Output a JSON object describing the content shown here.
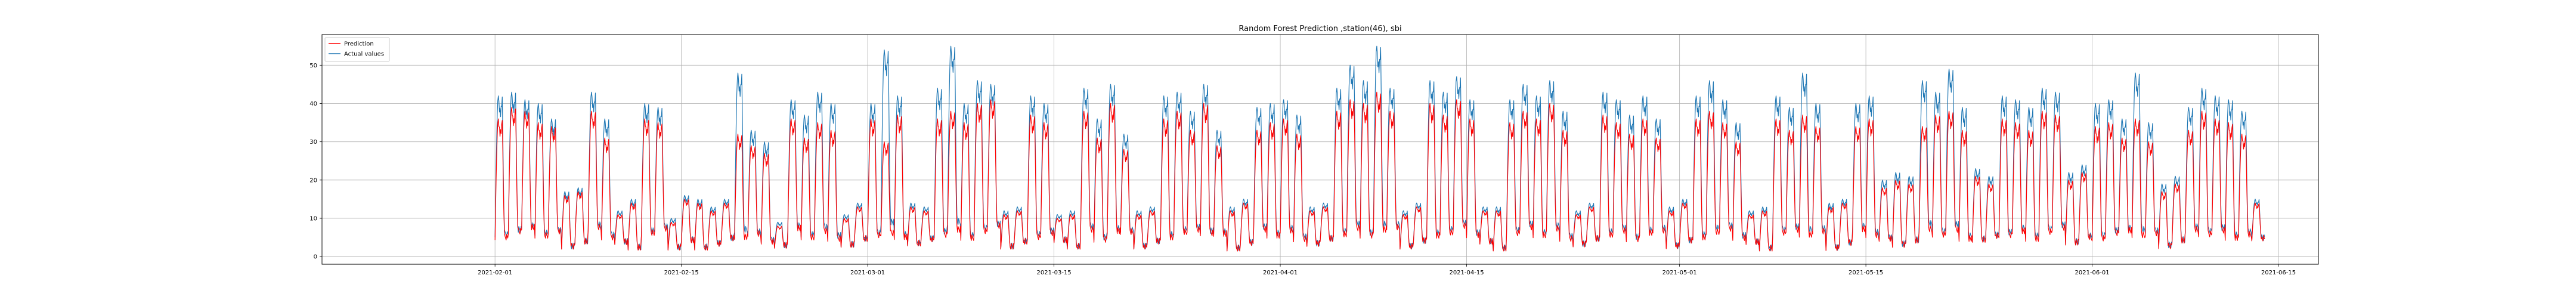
{
  "chart_data": {
    "type": "line",
    "title": "Random Forest Prediction ,station(46), sbi",
    "xlabel": "",
    "ylabel": "",
    "xlim": [
      "2021-01-19",
      "2021-06-18"
    ],
    "ylim": [
      -2,
      58
    ],
    "grid": true,
    "legend_position": "top-left",
    "x_ticks": [
      "2021-02-01",
      "2021-02-15",
      "2021-03-01",
      "2021-03-15",
      "2021-04-01",
      "2021-04-15",
      "2021-05-01",
      "2021-05-15",
      "2021-06-01",
      "2021-06-15"
    ],
    "y_ticks": [
      0,
      10,
      20,
      30,
      40,
      50
    ],
    "series": [
      {
        "name": "Prediction",
        "color": "#ff0000",
        "x": [
          "2021-02-01",
          "2021-02-02",
          "2021-02-03",
          "2021-02-04",
          "2021-02-05",
          "2021-02-06",
          "2021-02-07",
          "2021-02-08",
          "2021-02-09",
          "2021-02-10",
          "2021-02-11",
          "2021-02-12",
          "2021-02-13",
          "2021-02-14",
          "2021-02-15",
          "2021-02-16",
          "2021-02-17",
          "2021-02-18",
          "2021-02-19",
          "2021-02-20",
          "2021-02-21",
          "2021-02-22",
          "2021-02-23",
          "2021-02-24",
          "2021-02-25",
          "2021-02-26",
          "2021-02-27",
          "2021-02-28",
          "2021-03-01",
          "2021-03-02",
          "2021-03-03",
          "2021-03-04",
          "2021-03-05",
          "2021-03-06",
          "2021-03-07",
          "2021-03-08",
          "2021-03-09",
          "2021-03-10",
          "2021-03-11",
          "2021-03-12",
          "2021-03-13",
          "2021-03-14",
          "2021-03-15",
          "2021-03-16",
          "2021-03-17",
          "2021-03-18",
          "2021-03-19",
          "2021-03-20",
          "2021-03-21",
          "2021-03-22",
          "2021-03-23",
          "2021-03-24",
          "2021-03-25",
          "2021-03-26",
          "2021-03-27",
          "2021-03-28",
          "2021-03-29",
          "2021-03-30",
          "2021-03-31",
          "2021-04-01",
          "2021-04-02",
          "2021-04-03",
          "2021-04-04",
          "2021-04-05",
          "2021-04-06",
          "2021-04-07",
          "2021-04-08",
          "2021-04-09",
          "2021-04-10",
          "2021-04-11",
          "2021-04-12",
          "2021-04-13",
          "2021-04-14",
          "2021-04-15",
          "2021-04-16",
          "2021-04-17",
          "2021-04-18",
          "2021-04-19",
          "2021-04-20",
          "2021-04-21",
          "2021-04-22",
          "2021-04-23",
          "2021-04-24",
          "2021-04-25",
          "2021-04-26",
          "2021-04-27",
          "2021-04-28",
          "2021-04-29",
          "2021-04-30",
          "2021-05-01",
          "2021-05-02",
          "2021-05-03",
          "2021-05-04",
          "2021-05-05",
          "2021-05-06",
          "2021-05-07",
          "2021-05-08",
          "2021-05-09",
          "2021-05-10",
          "2021-05-11",
          "2021-05-12",
          "2021-05-13",
          "2021-05-14",
          "2021-05-15",
          "2021-05-16",
          "2021-05-17",
          "2021-05-18",
          "2021-05-19",
          "2021-05-20",
          "2021-05-21",
          "2021-05-22",
          "2021-05-23",
          "2021-05-24",
          "2021-05-25",
          "2021-05-26",
          "2021-05-27",
          "2021-05-28",
          "2021-05-29",
          "2021-05-30",
          "2021-05-31",
          "2021-06-01",
          "2021-06-02",
          "2021-06-03",
          "2021-06-04",
          "2021-06-05",
          "2021-06-06",
          "2021-06-07",
          "2021-06-08",
          "2021-06-09",
          "2021-06-10",
          "2021-06-11",
          "2021-06-12",
          "2021-06-13"
        ],
        "values": [
          36,
          39,
          38,
          35,
          34,
          16,
          17,
          38,
          31,
          11,
          14,
          36,
          35,
          9,
          15,
          14,
          12,
          14,
          32,
          29,
          27,
          8,
          36,
          31,
          35,
          33,
          10,
          13,
          36,
          30,
          37,
          13,
          12,
          36,
          38,
          35,
          40,
          41,
          11,
          12,
          37,
          35,
          10,
          11,
          38,
          31,
          40,
          28,
          11,
          12,
          36,
          38,
          33,
          40,
          29,
          12,
          14,
          33,
          35,
          36,
          32,
          12,
          13,
          38,
          41,
          40,
          43,
          38,
          11,
          13,
          40,
          37,
          41,
          36,
          12,
          12,
          35,
          38,
          36,
          40,
          33,
          11,
          13,
          37,
          35,
          32,
          36,
          31,
          12,
          14,
          36,
          38,
          35,
          30,
          11,
          12,
          36,
          33,
          37,
          34,
          13,
          14,
          34,
          36,
          18,
          20,
          19,
          34,
          37,
          38,
          33,
          21,
          19,
          36,
          35,
          33,
          38,
          37,
          20,
          22,
          34,
          35,
          31,
          36,
          30,
          17,
          19,
          33,
          38,
          36,
          35,
          32,
          14
        ]
      },
      {
        "name": "Actual values",
        "color": "#1f77b4",
        "x": [
          "2021-02-01",
          "2021-02-02",
          "2021-02-03",
          "2021-02-04",
          "2021-02-05",
          "2021-02-06",
          "2021-02-07",
          "2021-02-08",
          "2021-02-09",
          "2021-02-10",
          "2021-02-11",
          "2021-02-12",
          "2021-02-13",
          "2021-02-14",
          "2021-02-15",
          "2021-02-16",
          "2021-02-17",
          "2021-02-18",
          "2021-02-19",
          "2021-02-20",
          "2021-02-21",
          "2021-02-22",
          "2021-02-23",
          "2021-02-24",
          "2021-02-25",
          "2021-02-26",
          "2021-02-27",
          "2021-02-28",
          "2021-03-01",
          "2021-03-02",
          "2021-03-03",
          "2021-03-04",
          "2021-03-05",
          "2021-03-06",
          "2021-03-07",
          "2021-03-08",
          "2021-03-09",
          "2021-03-10",
          "2021-03-11",
          "2021-03-12",
          "2021-03-13",
          "2021-03-14",
          "2021-03-15",
          "2021-03-16",
          "2021-03-17",
          "2021-03-18",
          "2021-03-19",
          "2021-03-20",
          "2021-03-21",
          "2021-03-22",
          "2021-03-23",
          "2021-03-24",
          "2021-03-25",
          "2021-03-26",
          "2021-03-27",
          "2021-03-28",
          "2021-03-29",
          "2021-03-30",
          "2021-03-31",
          "2021-04-01",
          "2021-04-02",
          "2021-04-03",
          "2021-04-04",
          "2021-04-05",
          "2021-04-06",
          "2021-04-07",
          "2021-04-08",
          "2021-04-09",
          "2021-04-10",
          "2021-04-11",
          "2021-04-12",
          "2021-04-13",
          "2021-04-14",
          "2021-04-15",
          "2021-04-16",
          "2021-04-17",
          "2021-04-18",
          "2021-04-19",
          "2021-04-20",
          "2021-04-21",
          "2021-04-22",
          "2021-04-23",
          "2021-04-24",
          "2021-04-25",
          "2021-04-26",
          "2021-04-27",
          "2021-04-28",
          "2021-04-29",
          "2021-04-30",
          "2021-05-01",
          "2021-05-02",
          "2021-05-03",
          "2021-05-04",
          "2021-05-05",
          "2021-05-06",
          "2021-05-07",
          "2021-05-08",
          "2021-05-09",
          "2021-05-10",
          "2021-05-11",
          "2021-05-12",
          "2021-05-13",
          "2021-05-14",
          "2021-05-15",
          "2021-05-16",
          "2021-05-17",
          "2021-05-18",
          "2021-05-19",
          "2021-05-20",
          "2021-05-21",
          "2021-05-22",
          "2021-05-23",
          "2021-05-24",
          "2021-05-25",
          "2021-05-26",
          "2021-05-27",
          "2021-05-28",
          "2021-05-29",
          "2021-05-30",
          "2021-05-31",
          "2021-06-01",
          "2021-06-02",
          "2021-06-03",
          "2021-06-04",
          "2021-06-05",
          "2021-06-06",
          "2021-06-07",
          "2021-06-08",
          "2021-06-09",
          "2021-06-10",
          "2021-06-11",
          "2021-06-12",
          "2021-06-13"
        ],
        "values": [
          42,
          43,
          41,
          40,
          36,
          17,
          18,
          43,
          36,
          12,
          15,
          40,
          39,
          10,
          16,
          15,
          13,
          15,
          48,
          33,
          30,
          9,
          41,
          37,
          43,
          40,
          11,
          14,
          40,
          54,
          42,
          14,
          13,
          44,
          55,
          40,
          46,
          45,
          12,
          13,
          42,
          40,
          11,
          12,
          44,
          36,
          45,
          32,
          12,
          13,
          42,
          43,
          38,
          45,
          33,
          13,
          15,
          39,
          40,
          41,
          37,
          13,
          14,
          44,
          50,
          46,
          55,
          44,
          12,
          14,
          46,
          43,
          47,
          41,
          13,
          13,
          41,
          45,
          42,
          46,
          38,
          12,
          14,
          43,
          41,
          37,
          42,
          36,
          13,
          15,
          42,
          46,
          41,
          35,
          12,
          13,
          42,
          39,
          48,
          40,
          14,
          15,
          40,
          42,
          20,
          22,
          21,
          46,
          43,
          49,
          39,
          23,
          21,
          42,
          41,
          39,
          44,
          43,
          22,
          24,
          40,
          41,
          36,
          48,
          35,
          19,
          21,
          39,
          44,
          42,
          41,
          38,
          15
        ]
      }
    ]
  }
}
